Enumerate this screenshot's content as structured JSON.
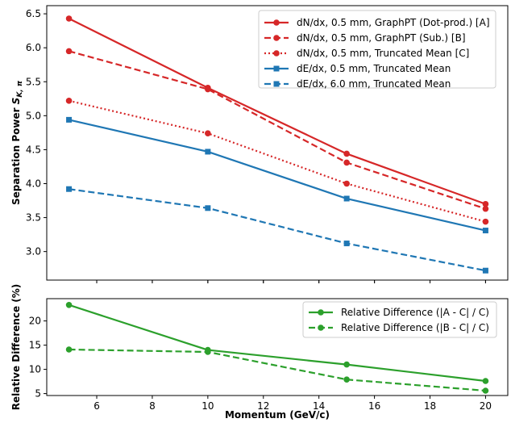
{
  "chart_data": [
    {
      "type": "line",
      "panel": "top",
      "ylabel": "Separation Power S_{K,π}",
      "xlabel": "",
      "x": [
        5,
        10,
        15,
        20
      ],
      "xlim": [
        4.2,
        20.8
      ],
      "ylim": [
        2.58,
        6.62
      ],
      "yticks": [
        3.0,
        3.5,
        4.0,
        4.5,
        5.0,
        5.5,
        6.0,
        6.5
      ],
      "grid": false,
      "legend_position": "top-right",
      "series": [
        {
          "name": "dN/dx, 0.5 mm, GraphPT (Dot-prod.) [A]",
          "values": [
            6.43,
            5.41,
            4.44,
            3.7
          ],
          "color": "#d62728",
          "linestyle": "solid",
          "marker": "circle"
        },
        {
          "name": "dN/dx, 0.5 mm, GraphPT (Sub.) [B]",
          "values": [
            5.95,
            5.39,
            4.31,
            3.63
          ],
          "color": "#d62728",
          "linestyle": "dashed",
          "marker": "circle"
        },
        {
          "name": "dN/dx, 0.5 mm, Truncated Mean [C]",
          "values": [
            5.22,
            4.74,
            4.0,
            3.44
          ],
          "color": "#d62728",
          "linestyle": "dotted",
          "marker": "circle"
        },
        {
          "name": "dE/dx, 0.5 mm, Truncated Mean",
          "values": [
            4.94,
            4.47,
            3.78,
            3.31
          ],
          "color": "#1f77b4",
          "linestyle": "solid",
          "marker": "square"
        },
        {
          "name": "dE/dx, 6.0 mm, Truncated Mean",
          "values": [
            3.92,
            3.64,
            3.12,
            2.72
          ],
          "color": "#1f77b4",
          "linestyle": "dashed",
          "marker": "square"
        }
      ]
    },
    {
      "type": "line",
      "panel": "bottom",
      "ylabel": "Relative Difference (%)",
      "xlabel": "Momentum (GeV/c)",
      "x": [
        5,
        10,
        15,
        20
      ],
      "xlim": [
        4.2,
        20.8
      ],
      "ylim": [
        4.6,
        24.6
      ],
      "yticks": [
        5,
        10,
        15,
        20
      ],
      "xticks": [
        6,
        8,
        10,
        12,
        14,
        16,
        18,
        20
      ],
      "grid": false,
      "legend_position": "top-right",
      "series": [
        {
          "name": "Relative Difference (|A - C| / C)",
          "values": [
            23.3,
            14.0,
            11.0,
            7.6
          ],
          "color": "#2ca02c",
          "linestyle": "solid",
          "marker": "circle"
        },
        {
          "name": "Relative Difference (|B - C| / C)",
          "values": [
            14.1,
            13.6,
            7.9,
            5.6
          ],
          "color": "#2ca02c",
          "linestyle": "dashed",
          "marker": "circle"
        }
      ]
    }
  ]
}
